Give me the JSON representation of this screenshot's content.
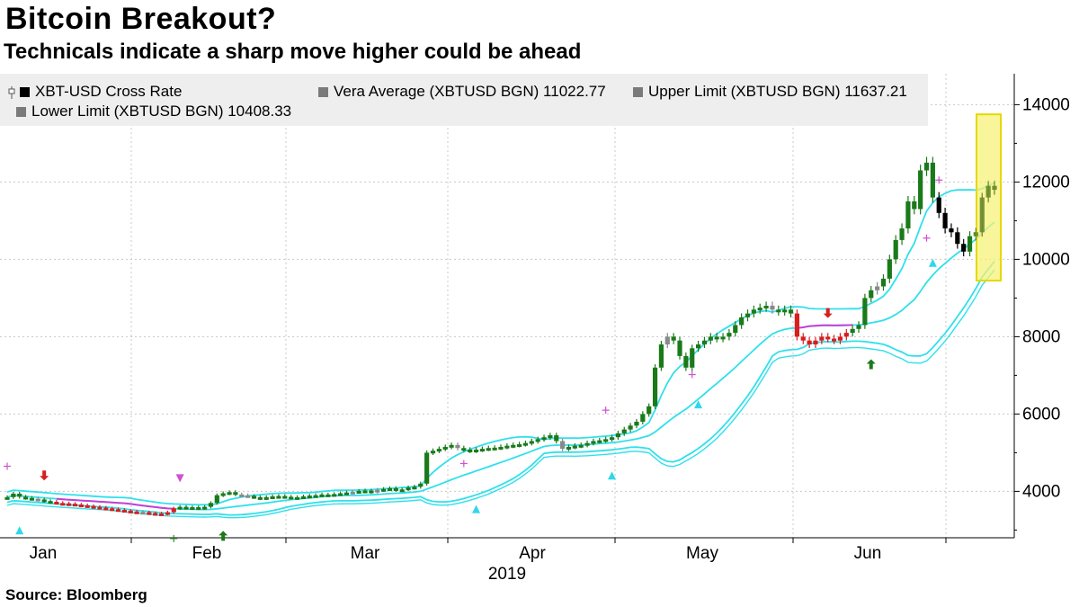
{
  "header": {
    "title": "Bitcoin Breakout?",
    "subtitle": "Technicals indicate a sharp move higher could be ahead"
  },
  "footer": {
    "source": "Source: Bloomberg"
  },
  "legend": {
    "items": [
      {
        "label": "XBT-USD Cross Rate",
        "color": "#000000"
      },
      {
        "label": "Vera Average (XBTUSD BGN) 11022.77",
        "color": "#7a7a7a"
      },
      {
        "label": "Upper Limit (XBTUSD BGN) 11637.21",
        "color": "#7a7a7a"
      },
      {
        "label": "Lower Limit (XBTUSD BGN) 10408.33",
        "color": "#7a7a7a"
      }
    ]
  },
  "chart_data": {
    "type": "candlestick",
    "year_label": "2019",
    "x_tick_labels": [
      "Jan",
      "Feb",
      "Mar",
      "Apr",
      "May",
      "Jun"
    ],
    "y_ticks": [
      4000,
      6000,
      8000,
      10000,
      12000,
      14000
    ],
    "y_tick_labels": [
      "4000",
      "6000",
      "8000",
      "10000",
      "12000",
      "14000"
    ],
    "ylim": [
      2800,
      14800
    ],
    "grid": true,
    "legend_position": "top",
    "colors": {
      "up": "#1a7a1a",
      "down_red": "#d81e1e",
      "black": "#000000",
      "gray": "#8a8a8a",
      "band": "#2fe0ec",
      "average_magenta": "#c43fd6",
      "highlight_fill": "#f6f27a",
      "highlight_border": "#e6d800"
    },
    "period_from": "2019-01-01",
    "period_to": "2019-06-27",
    "closes": [
      [
        3850,
        3940,
        3860,
        3830,
        3810,
        3790,
        3750,
        3730,
        3700,
        3690,
        3680,
        3660,
        3640,
        3620,
        3600,
        3580,
        3560,
        3540,
        3520,
        3500,
        3480,
        3470,
        3460,
        3440,
        3430,
        3420,
        3460,
        3560,
        3600,
        3580
      ],
      [
        3590,
        3570,
        3600,
        3700,
        3900,
        3950,
        3980,
        3920,
        3900,
        3880,
        3850,
        3820,
        3850,
        3870,
        3880,
        3860,
        3840,
        3850,
        3870,
        3890,
        3900,
        3920,
        3910,
        3930,
        3950,
        3970,
        3990,
        4010,
        4020,
        3990
      ],
      [
        4040,
        4060,
        4080,
        4040,
        4050,
        4100,
        4120,
        4200,
        5000,
        5050,
        5100,
        5150,
        5200,
        5120,
        5080,
        5050,
        5080,
        5100,
        5120,
        5130,
        5150,
        5180,
        5200,
        5220,
        5250,
        5300,
        5350,
        5400,
        5450,
        5300
      ],
      [
        5100,
        5150,
        5180,
        5200,
        5250,
        5300,
        5320,
        5350,
        5400,
        5500,
        5600,
        5700,
        5800,
        6000,
        6200,
        7200,
        7800,
        8000,
        7900,
        7500,
        7200,
        7700,
        7800,
        7900,
        8000,
        7950,
        8000,
        8100,
        8300,
        8500
      ],
      [
        8600,
        8700,
        8750,
        8800,
        8700,
        8650,
        8700,
        8600,
        8000,
        7900,
        7800,
        7900,
        8000,
        7950,
        7900,
        8000,
        8100,
        8200,
        8300,
        9000,
        9200,
        9300,
        9500,
        10000,
        10500,
        10800,
        11500,
        11300,
        12300,
        12500
      ],
      [
        11600,
        11200,
        10800,
        10700,
        10400,
        10200,
        10600,
        10700,
        11600,
        11900,
        11800
      ]
    ],
    "series": [
      {
        "name": "XBT-USD Cross Rate"
      },
      {
        "name": "Vera Average (XBTUSD BGN)",
        "last": 11022.77
      },
      {
        "name": "Upper Limit (XBTUSD BGN)",
        "last": 11637.21
      },
      {
        "name": "Lower Limit (XBTUSD BGN)",
        "last": 10408.33
      }
    ]
  }
}
